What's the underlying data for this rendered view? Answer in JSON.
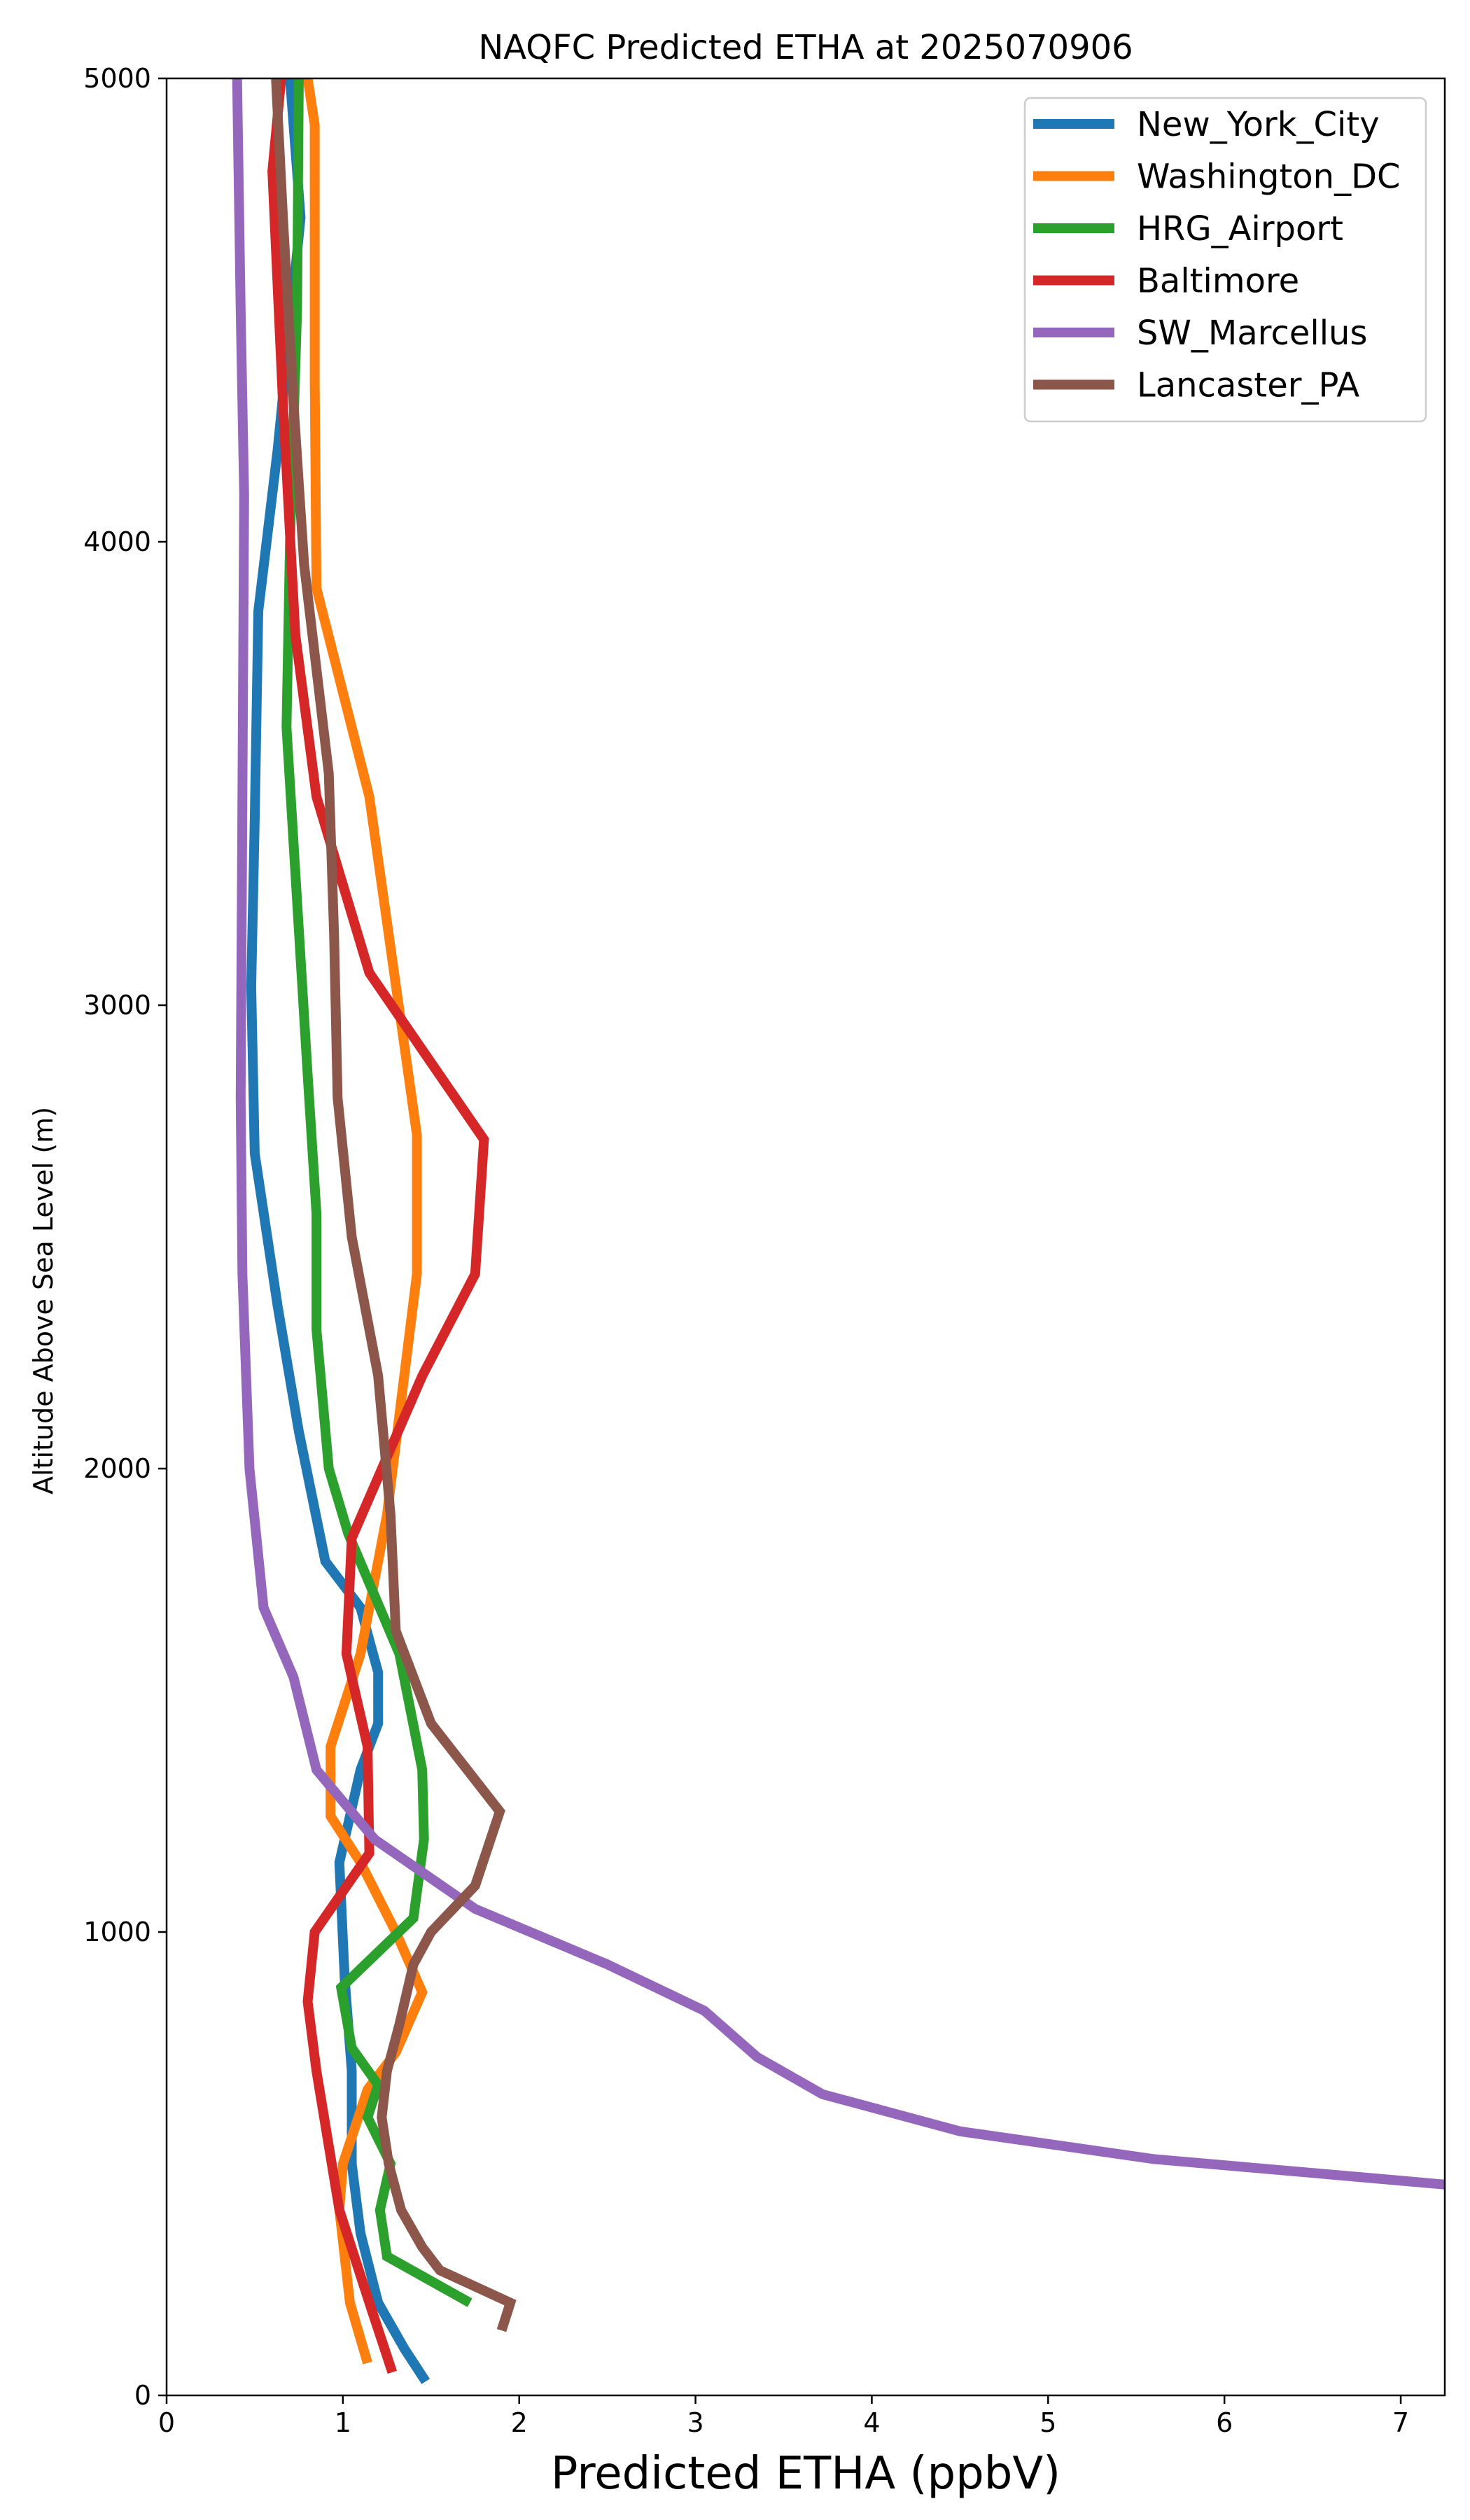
{
  "chart_data": {
    "type": "line",
    "title": "NAQFC Predicted ETHA at 2025070906",
    "xlabel": "Predicted ETHA (ppbV)",
    "ylabel": "Altitude Above Sea Level (m)",
    "xlim": [
      0,
      7.25
    ],
    "ylim": [
      0,
      5000
    ],
    "xticks": [
      0,
      1,
      2,
      3,
      4,
      5,
      6,
      7
    ],
    "yticks": [
      0,
      1000,
      2000,
      3000,
      4000,
      5000
    ],
    "grid": false,
    "legend_position": "top-right",
    "series": [
      {
        "name": "New_York_City",
        "color": "#1f77b4",
        "points": [
          [
            1.47,
            30
          ],
          [
            1.35,
            100
          ],
          [
            1.2,
            200
          ],
          [
            1.1,
            350
          ],
          [
            1.05,
            500
          ],
          [
            1.05,
            700
          ],
          [
            1.01,
            900
          ],
          [
            0.98,
            1150
          ],
          [
            1.1,
            1350
          ],
          [
            1.2,
            1450
          ],
          [
            1.2,
            1560
          ],
          [
            1.1,
            1700
          ],
          [
            0.9,
            1800
          ],
          [
            0.75,
            2080
          ],
          [
            0.63,
            2350
          ],
          [
            0.5,
            2680
          ],
          [
            0.48,
            3040
          ],
          [
            0.5,
            3400
          ],
          [
            0.52,
            3850
          ],
          [
            0.63,
            4200
          ],
          [
            0.76,
            4700
          ],
          [
            0.7,
            5000
          ]
        ]
      },
      {
        "name": "Washington_DC",
        "color": "#ff7f0e",
        "points": [
          [
            1.14,
            70
          ],
          [
            1.04,
            200
          ],
          [
            0.98,
            400
          ],
          [
            1.0,
            500
          ],
          [
            1.14,
            660
          ],
          [
            1.3,
            740
          ],
          [
            1.45,
            870
          ],
          [
            1.3,
            1000
          ],
          [
            1.1,
            1150
          ],
          [
            0.93,
            1250
          ],
          [
            0.93,
            1400
          ],
          [
            1.1,
            1600
          ],
          [
            1.25,
            1900
          ],
          [
            1.42,
            2420
          ],
          [
            1.42,
            2720
          ],
          [
            1.15,
            3450
          ],
          [
            0.85,
            3900
          ],
          [
            0.84,
            4350
          ],
          [
            0.84,
            4900
          ],
          [
            0.8,
            5000
          ]
        ]
      },
      {
        "name": "HRG_Airport",
        "color": "#2ca02c",
        "points": [
          [
            1.72,
            200
          ],
          [
            1.25,
            300
          ],
          [
            1.21,
            400
          ],
          [
            1.27,
            500
          ],
          [
            1.14,
            600
          ],
          [
            1.2,
            670
          ],
          [
            1.05,
            750
          ],
          [
            0.99,
            880
          ],
          [
            1.4,
            1030
          ],
          [
            1.46,
            1200
          ],
          [
            1.45,
            1350
          ],
          [
            1.32,
            1600
          ],
          [
            1.03,
            1860
          ],
          [
            0.92,
            2000
          ],
          [
            0.85,
            2300
          ],
          [
            0.85,
            2550
          ],
          [
            0.8,
            2850
          ],
          [
            0.68,
            3600
          ],
          [
            0.7,
            4000
          ],
          [
            0.74,
            4500
          ],
          [
            0.75,
            5000
          ]
        ]
      },
      {
        "name": "Baltimore",
        "color": "#d62728",
        "points": [
          [
            1.28,
            50
          ],
          [
            1.15,
            200
          ],
          [
            0.98,
            400
          ],
          [
            0.85,
            700
          ],
          [
            0.8,
            850
          ],
          [
            0.84,
            1000
          ],
          [
            1.15,
            1170
          ],
          [
            1.14,
            1400
          ],
          [
            1.02,
            1600
          ],
          [
            1.05,
            1850
          ],
          [
            1.45,
            2200
          ],
          [
            1.75,
            2420
          ],
          [
            1.8,
            2710
          ],
          [
            1.15,
            3070
          ],
          [
            0.85,
            3450
          ],
          [
            0.73,
            3800
          ],
          [
            0.66,
            4300
          ],
          [
            0.6,
            4800
          ],
          [
            0.65,
            5000
          ]
        ]
      },
      {
        "name": "SW_Marcellus",
        "color": "#9467bd",
        "points": [
          [
            7.25,
            455
          ],
          [
            6.5,
            480
          ],
          [
            5.6,
            510
          ],
          [
            4.5,
            570
          ],
          [
            3.72,
            650
          ],
          [
            3.35,
            730
          ],
          [
            3.05,
            830
          ],
          [
            2.5,
            930
          ],
          [
            1.75,
            1050
          ],
          [
            1.18,
            1200
          ],
          [
            0.85,
            1350
          ],
          [
            0.72,
            1550
          ],
          [
            0.55,
            1700
          ],
          [
            0.47,
            2000
          ],
          [
            0.43,
            2420
          ],
          [
            0.42,
            2800
          ],
          [
            0.44,
            4100
          ],
          [
            0.42,
            4500
          ],
          [
            0.4,
            5000
          ]
        ]
      },
      {
        "name": "Lancaster_PA",
        "color": "#8c564b",
        "points": [
          [
            1.9,
            140
          ],
          [
            1.95,
            200
          ],
          [
            1.55,
            270
          ],
          [
            1.45,
            320
          ],
          [
            1.33,
            400
          ],
          [
            1.26,
            500
          ],
          [
            1.22,
            600
          ],
          [
            1.25,
            700
          ],
          [
            1.32,
            800
          ],
          [
            1.4,
            930
          ],
          [
            1.5,
            1000
          ],
          [
            1.75,
            1100
          ],
          [
            1.89,
            1260
          ],
          [
            1.5,
            1450
          ],
          [
            1.3,
            1650
          ],
          [
            1.27,
            1900
          ],
          [
            1.2,
            2200
          ],
          [
            1.05,
            2500
          ],
          [
            0.97,
            2800
          ],
          [
            0.95,
            3150
          ],
          [
            0.92,
            3500
          ],
          [
            0.78,
            3950
          ],
          [
            0.72,
            4300
          ],
          [
            0.66,
            4700
          ],
          [
            0.62,
            5000
          ]
        ]
      }
    ]
  }
}
